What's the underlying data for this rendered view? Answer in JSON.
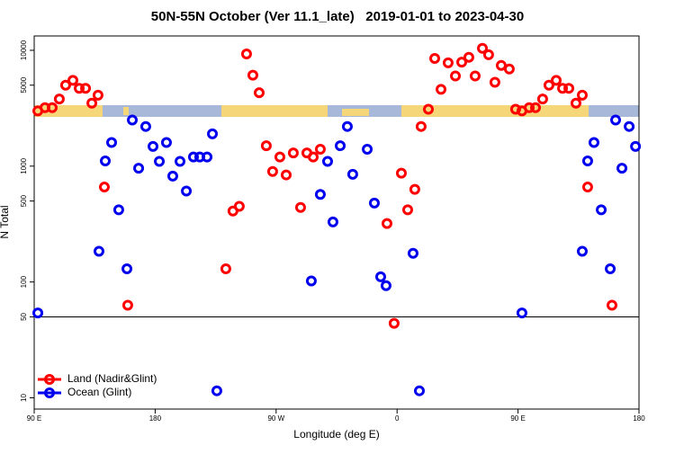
{
  "chart_data": {
    "type": "scatter",
    "title": "50N-55N October (Ver 11.1_late)   2019-01-01 to 2023-04-30",
    "xlabel": "Longitude (deg E)",
    "ylabel": "N Total",
    "xlim": [
      90,
      540
    ],
    "xticks": [
      {
        "value": 90,
        "label": "90 E"
      },
      180,
      {
        "value": 270,
        "label": "90 W"
      },
      {
        "value": 360,
        "label": "0"
      },
      {
        "value": 450,
        "label": "90 E"
      },
      {
        "value": 540,
        "label": "180"
      }
    ],
    "ylim": [
      8,
      13300
    ],
    "ylog": true,
    "yticks": [
      10,
      50,
      100,
      500,
      1000,
      5000,
      10000
    ],
    "reference_line": 50,
    "legend": "bottom-left",
    "series": [
      {
        "name": "Land (Nadir&Glint)",
        "color": "#ff0000",
        "x": [
          92.7,
          98.0,
          103.4,
          108.7,
          113.4,
          118.8,
          123.5,
          128.2,
          132.9,
          137.5,
          142.2,
          159.6,
          232.6,
          237.9,
          242.6,
          248.0,
          252.7,
          257.4,
          262.7,
          267.4,
          272.8,
          277.5,
          282.8,
          288.2,
          292.9,
          297.6,
          302.9,
          352.5,
          357.8,
          363.2,
          367.9,
          373.2,
          377.9,
          383.3,
          388.0,
          392.7,
          398.0,
          403.4,
          408.1,
          413.4,
          418.1,
          423.5,
          428.1,
          432.8,
          437.5,
          443.5,
          448.2,
          452.9,
          458.3,
          463.0,
          468.3,
          473.0,
          478.4,
          483.1,
          487.8,
          493.1,
          497.8,
          501.8,
          519.9
        ],
        "values": [
          3000,
          3200,
          3200,
          3800,
          5000,
          5500,
          4700,
          4700,
          3500,
          4100,
          660,
          63,
          130,
          410,
          450,
          9300,
          6100,
          4300,
          1500,
          900,
          1200,
          840,
          1300,
          440,
          1300,
          1200,
          1400,
          320,
          44,
          870,
          420,
          630,
          2200,
          3100,
          8500,
          4600,
          7800,
          6000,
          7900,
          8700,
          6000,
          10400,
          9150,
          5300,
          7400,
          6900,
          3100,
          3000,
          3200,
          3200,
          3800,
          5000,
          5500,
          4700,
          4700,
          3500,
          4100,
          660,
          63
        ]
      },
      {
        "name": "Ocean (Glint)",
        "color": "#0000ee",
        "x": [
          92.7,
          138.2,
          142.9,
          147.6,
          152.9,
          159.0,
          163.0,
          167.7,
          173.0,
          178.4,
          183.1,
          188.4,
          193.1,
          198.5,
          203.2,
          208.5,
          213.2,
          218.6,
          222.6,
          225.9,
          296.2,
          302.9,
          308.3,
          312.3,
          317.7,
          323.0,
          327.0,
          337.8,
          343.1,
          347.8,
          351.8,
          371.9,
          376.6,
          452.9,
          497.8,
          501.8,
          506.5,
          511.9,
          518.6,
          522.6,
          527.3,
          532.7,
          537.4
        ],
        "values": [
          54,
          184,
          1110,
          1600,
          420,
          130,
          2500,
          960,
          2200,
          1480,
          1100,
          1600,
          820,
          1100,
          610,
          1200,
          1200,
          1200,
          1900,
          11.5,
          102,
          570,
          1100,
          330,
          1500,
          2200,
          850,
          1400,
          480,
          111,
          93,
          177,
          11.5,
          54,
          184,
          1110,
          1600,
          420,
          130,
          2500,
          960,
          2200,
          1480
        ]
      }
    ]
  }
}
